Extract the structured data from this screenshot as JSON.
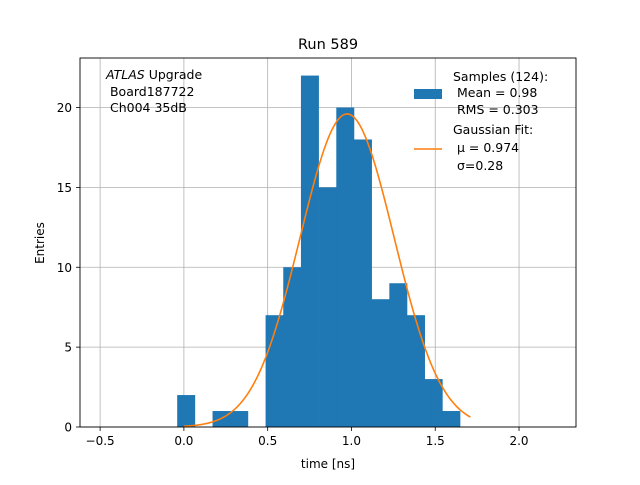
{
  "chart_data": {
    "type": "bar",
    "title": "Run 589",
    "xlabel": "time [ns]",
    "ylabel": "Entries",
    "xlim": [
      -0.62,
      2.34
    ],
    "ylim": [
      0,
      23.1
    ],
    "xticks": [
      -0.5,
      0.0,
      0.5,
      1.0,
      1.5,
      2.0
    ],
    "xtick_labels": [
      "−0.5",
      "0.0",
      "0.5",
      "1.0",
      "1.5",
      "2.0"
    ],
    "yticks": [
      0,
      5,
      10,
      15,
      20
    ],
    "ytick_labels": [
      "0",
      "5",
      "10",
      "15",
      "20"
    ],
    "grid": true,
    "histogram": {
      "name": "Samples (124):",
      "color": "#1f77b4",
      "bin_edges": [
        -0.04,
        0.0655,
        0.171,
        0.2765,
        0.382,
        0.4875,
        0.593,
        0.6985,
        0.804,
        0.9095,
        1.015,
        1.1205,
        1.226,
        1.3315,
        1.437,
        1.5425,
        1.648,
        1.7535
      ],
      "counts": [
        2,
        0,
        1,
        1,
        0,
        7,
        10,
        22,
        15,
        20,
        18,
        8,
        9,
        7,
        3,
        1,
        0
      ]
    },
    "fit": {
      "name": "Gaussian Fit:",
      "color": "#ff7f0e",
      "amplitude": 19.6,
      "mu": 0.974,
      "sigma": 0.28,
      "x_range": [
        0.0,
        1.71
      ]
    },
    "annotation": {
      "line1_italic": "ATLAS",
      "line1_rest": " Upgrade",
      "line2": " Board187722",
      "line3": " Ch004 35dB"
    },
    "legend": {
      "position": "top-right",
      "hist_lines": [
        "Samples (124):",
        " Mean = 0.98",
        " RMS = 0.303"
      ],
      "fit_lines": [
        "Gaussian Fit:",
        " μ = 0.974",
        " σ=0.28"
      ]
    }
  }
}
